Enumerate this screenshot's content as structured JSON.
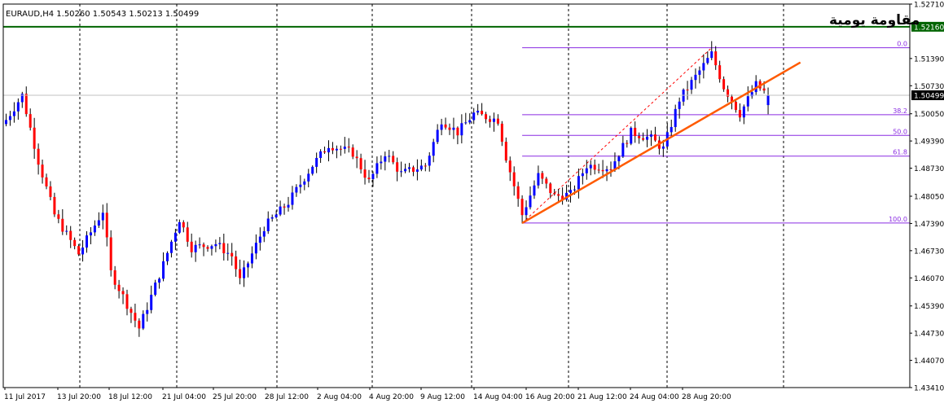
{
  "header": {
    "symbol_info": "EURAUD,H4  1.50260 1.50543 1.50213 1.50499",
    "annotation": "مقاومة يومية"
  },
  "colors": {
    "bull": "#0000ff",
    "bear": "#ff0000",
    "wick": "#000000",
    "fib": "#8a2be2",
    "resistance": "#006400",
    "trendline": "#ff5a00",
    "grid": "#000000",
    "price_line": "#c0c0c0"
  },
  "chart_data": {
    "type": "candlestick",
    "symbol": "EURAUD",
    "timeframe": "H4",
    "ohlc_current": {
      "open": 1.5026,
      "high": 1.50543,
      "low": 1.50213,
      "close": 1.50499
    },
    "ylim": [
      1.4341,
      1.5271
    ],
    "y_ticks": [
      "1.52710",
      "1.52160",
      "1.51390",
      "1.50730",
      "1.50499",
      "1.50050",
      "1.49390",
      "1.48730",
      "1.48050",
      "1.47390",
      "1.46730",
      "1.46070",
      "1.45390",
      "1.44730",
      "1.44070",
      "1.43410"
    ],
    "x_ticks": [
      "11 Jul 2017",
      "13 Jul 20:00",
      "18 Jul 12:00",
      "21 Jul 04:00",
      "25 Jul 20:00",
      "28 Jul 12:00",
      "2 Aug 04:00",
      "4 Aug 20:00",
      "9 Aug 12:00",
      "14 Aug 04:00",
      "16 Aug 20:00",
      "21 Aug 12:00",
      "24 Aug 04:00",
      "28 Aug 20:00"
    ],
    "grid": true,
    "resistance": {
      "value": 1.5216,
      "label": "1.52160"
    },
    "current_price": {
      "value": 1.50499,
      "label": "1.50499"
    },
    "fibonacci": {
      "high": 1.5165,
      "low": 1.474,
      "levels": [
        {
          "label": "0.0",
          "ratio": 0.0
        },
        {
          "label": "38.2",
          "ratio": 0.382
        },
        {
          "label": "50.0",
          "ratio": 0.5
        },
        {
          "label": "61.8",
          "ratio": 0.618
        },
        {
          "label": "100.0",
          "ratio": 1.0
        }
      ]
    },
    "trendline": {
      "from_index": 128,
      "from_value": 1.474,
      "to_index": 190,
      "to_value": 1.509
    },
    "anchors": [
      [
        0,
        1.499
      ],
      [
        4,
        1.505
      ],
      [
        8,
        1.489
      ],
      [
        12,
        1.476
      ],
      [
        18,
        1.4665
      ],
      [
        24,
        1.477
      ],
      [
        26,
        1.462
      ],
      [
        33,
        1.4485
      ],
      [
        39,
        1.464
      ],
      [
        43,
        1.475
      ],
      [
        46,
        1.468
      ],
      [
        52,
        1.469
      ],
      [
        56,
        1.466
      ],
      [
        58,
        1.46
      ],
      [
        64,
        1.473
      ],
      [
        70,
        1.479
      ],
      [
        76,
        1.488
      ],
      [
        80,
        1.493
      ],
      [
        86,
        1.491
      ],
      [
        90,
        1.484
      ],
      [
        94,
        1.491
      ],
      [
        98,
        1.486
      ],
      [
        104,
        1.488
      ],
      [
        108,
        1.499
      ],
      [
        112,
        1.496
      ],
      [
        116,
        1.5005
      ],
      [
        122,
        1.499
      ],
      [
        124,
        1.49
      ],
      [
        128,
        1.476
      ],
      [
        132,
        1.4855
      ],
      [
        136,
        1.4805
      ],
      [
        140,
        1.481
      ],
      [
        144,
        1.488
      ],
      [
        150,
        1.4875
      ],
      [
        155,
        1.496
      ],
      [
        160,
        1.4945
      ],
      [
        163,
        1.492
      ],
      [
        167,
        1.504
      ],
      [
        171,
        1.5095
      ],
      [
        175,
        1.515
      ],
      [
        178,
        1.507
      ],
      [
        182,
        1.5005
      ],
      [
        186,
        1.5075
      ],
      [
        189,
        1.505
      ]
    ]
  }
}
